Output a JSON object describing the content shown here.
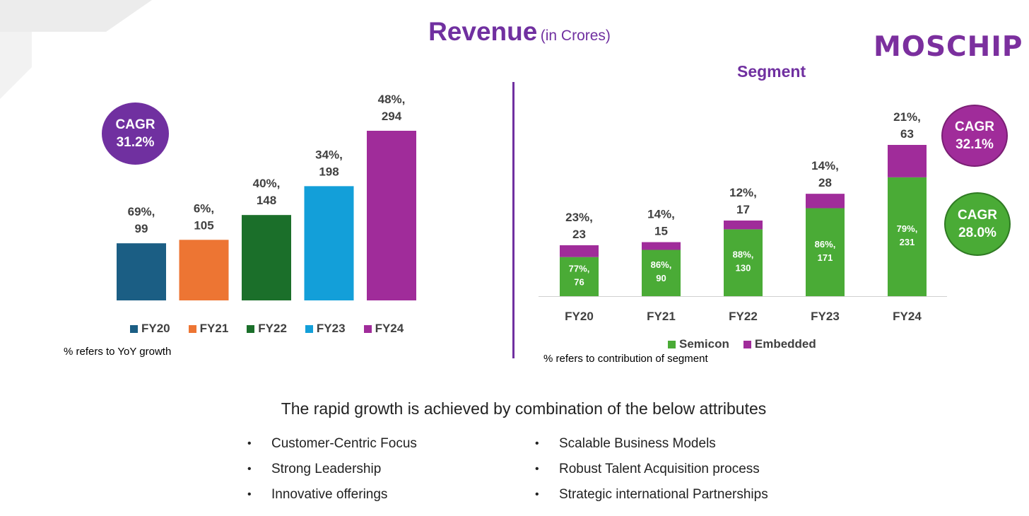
{
  "title": {
    "main": "Revenue",
    "sub": "(in Crores)"
  },
  "logo": "MOSCHIP",
  "colors": {
    "accent": "#7030a0",
    "fy20": "#1b5e84",
    "fy21": "#ed7533",
    "fy22": "#1b6f2a",
    "fy23": "#139fd9",
    "fy24": "#a02c9a",
    "semicon": "#4aab36",
    "embedded": "#a02c9a",
    "cagr_purple": "#7030a0",
    "cagr_green": "#2f8f3a"
  },
  "chart_data": [
    {
      "type": "bar",
      "categories": [
        "FY20",
        "FY21",
        "FY22",
        "FY23",
        "FY24"
      ],
      "values": [
        99,
        105,
        148,
        198,
        294
      ],
      "labels": [
        [
          "69%,",
          "99"
        ],
        [
          "6%,",
          "105"
        ],
        [
          "40%,",
          "148"
        ],
        [
          "34%,",
          "198"
        ],
        [
          "48%,",
          "294"
        ]
      ],
      "legend": [
        "FY20",
        "FY21",
        "FY22",
        "FY23",
        "FY24"
      ],
      "legend_position": "bottom",
      "note": "% refers to YoY growth",
      "cagr": {
        "label": "CAGR",
        "value": "31.2%"
      }
    },
    {
      "type": "bar",
      "stacked": true,
      "title": "Segment",
      "categories": [
        "FY20",
        "FY21",
        "FY22",
        "FY23",
        "FY24"
      ],
      "series": [
        {
          "name": "Semicon",
          "values": [
            76,
            90,
            130,
            171,
            231
          ],
          "labels": [
            [
              "77%,",
              "76"
            ],
            [
              "86%,",
              "90"
            ],
            [
              "88%,",
              "130"
            ],
            [
              "86%,",
              "171"
            ],
            [
              "79%,",
              "231"
            ]
          ]
        },
        {
          "name": "Embedded",
          "values": [
            23,
            15,
            17,
            28,
            63
          ],
          "labels": [
            [
              "23%,",
              "23"
            ],
            [
              "14%,",
              "15"
            ],
            [
              "12%,",
              "17"
            ],
            [
              "14%,",
              "28"
            ],
            [
              "21%,",
              "63"
            ]
          ]
        }
      ],
      "legend_position": "bottom",
      "note": "% refers to contribution of segment",
      "cagr": [
        {
          "label": "CAGR",
          "value": "32.1%"
        },
        {
          "label": "CAGR",
          "value": "28.0%"
        }
      ]
    }
  ],
  "headline": "The rapid growth is achieved by combination of the below attributes",
  "bullets": {
    "marker": "•",
    "left": [
      "Customer-Centric Focus",
      "Strong Leadership",
      "Innovative offerings"
    ],
    "right": [
      "Scalable Business Models",
      "Robust Talent Acquisition process",
      "Strategic international Partnerships"
    ]
  }
}
